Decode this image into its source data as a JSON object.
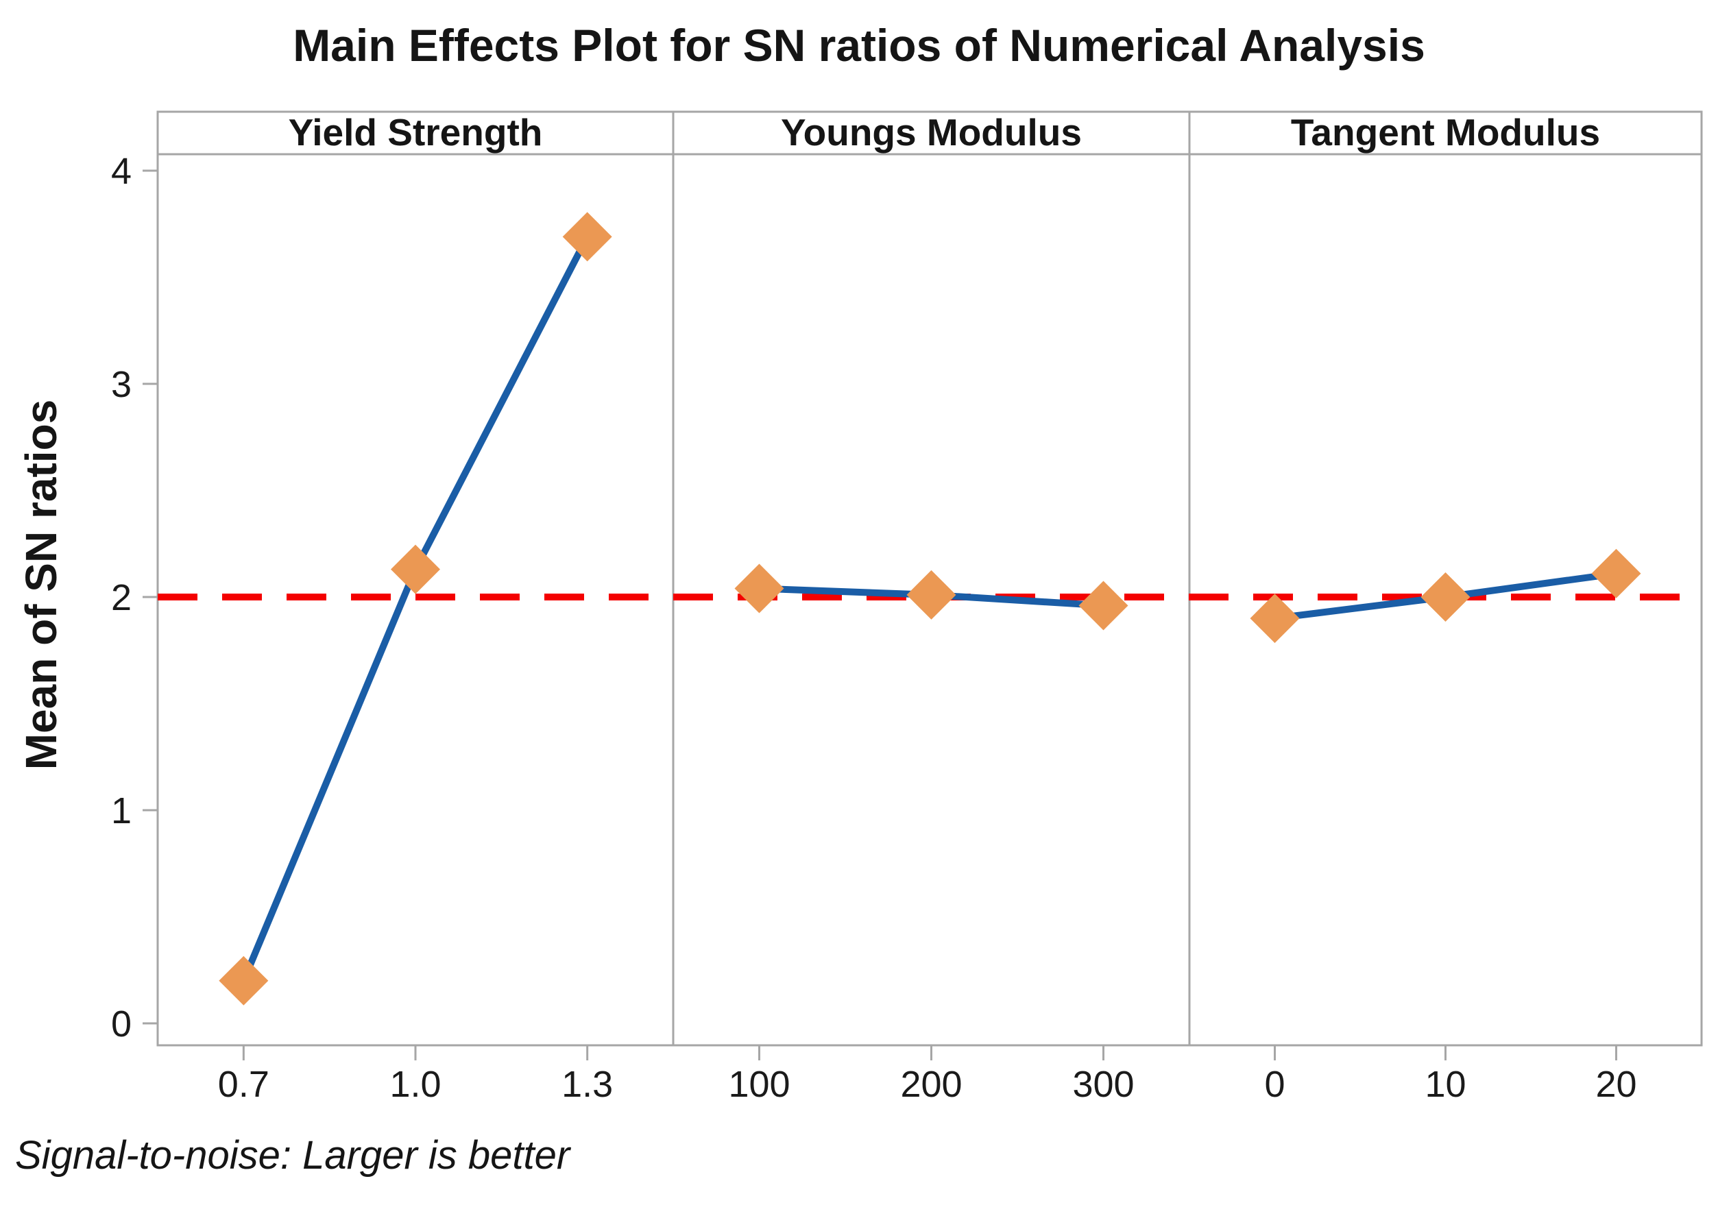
{
  "chart_data": {
    "type": "line",
    "title": "Main Effects Plot for SN ratios of Numerical Analysis",
    "ylabel": "Mean of SN ratios",
    "footnote": "Signal-to-noise: Larger is better",
    "ylim": [
      0,
      4
    ],
    "yticks": [
      "0",
      "1",
      "2",
      "3",
      "4"
    ],
    "grid": false,
    "legend": "none",
    "reference_line": {
      "y": 2,
      "style": "dashed",
      "color": "#f40000"
    },
    "panels": [
      {
        "label": "Yield Strength",
        "categories": [
          "0.7",
          "1.0",
          "1.3"
        ],
        "values": [
          0.2,
          2.13,
          3.69
        ]
      },
      {
        "label": "Youngs Modulus",
        "categories": [
          "100",
          "200",
          "300"
        ],
        "values": [
          2.04,
          2.01,
          1.96
        ]
      },
      {
        "label": "Tangent Modulus",
        "categories": [
          "0",
          "10",
          "20"
        ],
        "values": [
          1.9,
          2.0,
          2.11
        ]
      }
    ],
    "series_style": {
      "line_color": "#1a5da6",
      "marker_shape": "diamond",
      "marker_color": "#eb9853",
      "axis_color": "#a6a6a6"
    }
  }
}
